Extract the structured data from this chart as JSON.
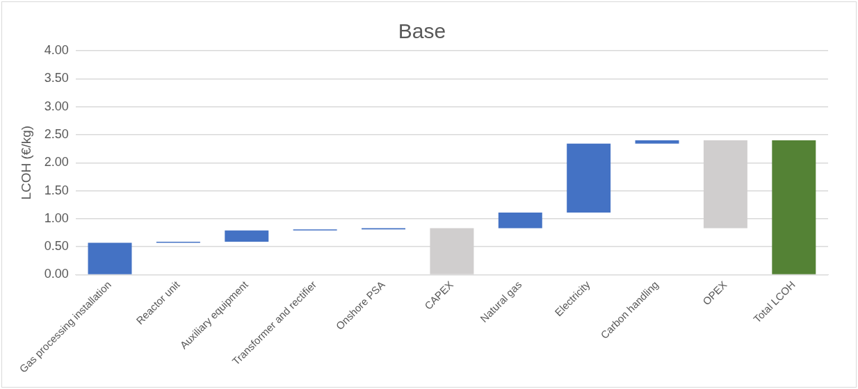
{
  "chart_data": {
    "type": "bar",
    "title": "Base",
    "ylabel": "LCOH (€/kg)",
    "categories": [
      "Gas processing installation",
      "Reactor unit",
      "Auxiliary equipment",
      "Transformer and rectifier",
      "Onshore PSA",
      "CAPEX",
      "Natural gas",
      "Electricity",
      "Carbon handling",
      "OPEX",
      "Total LCOH"
    ],
    "values": [
      0.57,
      0.02,
      0.2,
      0.02,
      0.02,
      0.83,
      0.28,
      1.23,
      0.06,
      1.57,
      2.4
    ],
    "base": [
      0,
      0.57,
      0.59,
      0.79,
      0.81,
      0,
      0.83,
      1.11,
      2.34,
      0.83,
      0
    ],
    "colors": [
      "#4472c4",
      "#4472c4",
      "#4472c4",
      "#4472c4",
      "#4472c4",
      "#d0cece",
      "#4472c4",
      "#4472c4",
      "#4472c4",
      "#d0cece",
      "#548235"
    ],
    "ylim": [
      0,
      4
    ],
    "yticks": [
      {
        "value": 0,
        "label": "0.00"
      },
      {
        "value": 0.5,
        "label": "0.50"
      },
      {
        "value": 1,
        "label": "1.00"
      },
      {
        "value": 1.5,
        "label": "1.50"
      },
      {
        "value": 2,
        "label": "2.00"
      },
      {
        "value": 2.5,
        "label": "2.50"
      },
      {
        "value": 3,
        "label": "3.00"
      },
      {
        "value": 3.5,
        "label": "3.50"
      },
      {
        "value": 4,
        "label": "4.00"
      }
    ],
    "grid": "y",
    "legend": false
  }
}
